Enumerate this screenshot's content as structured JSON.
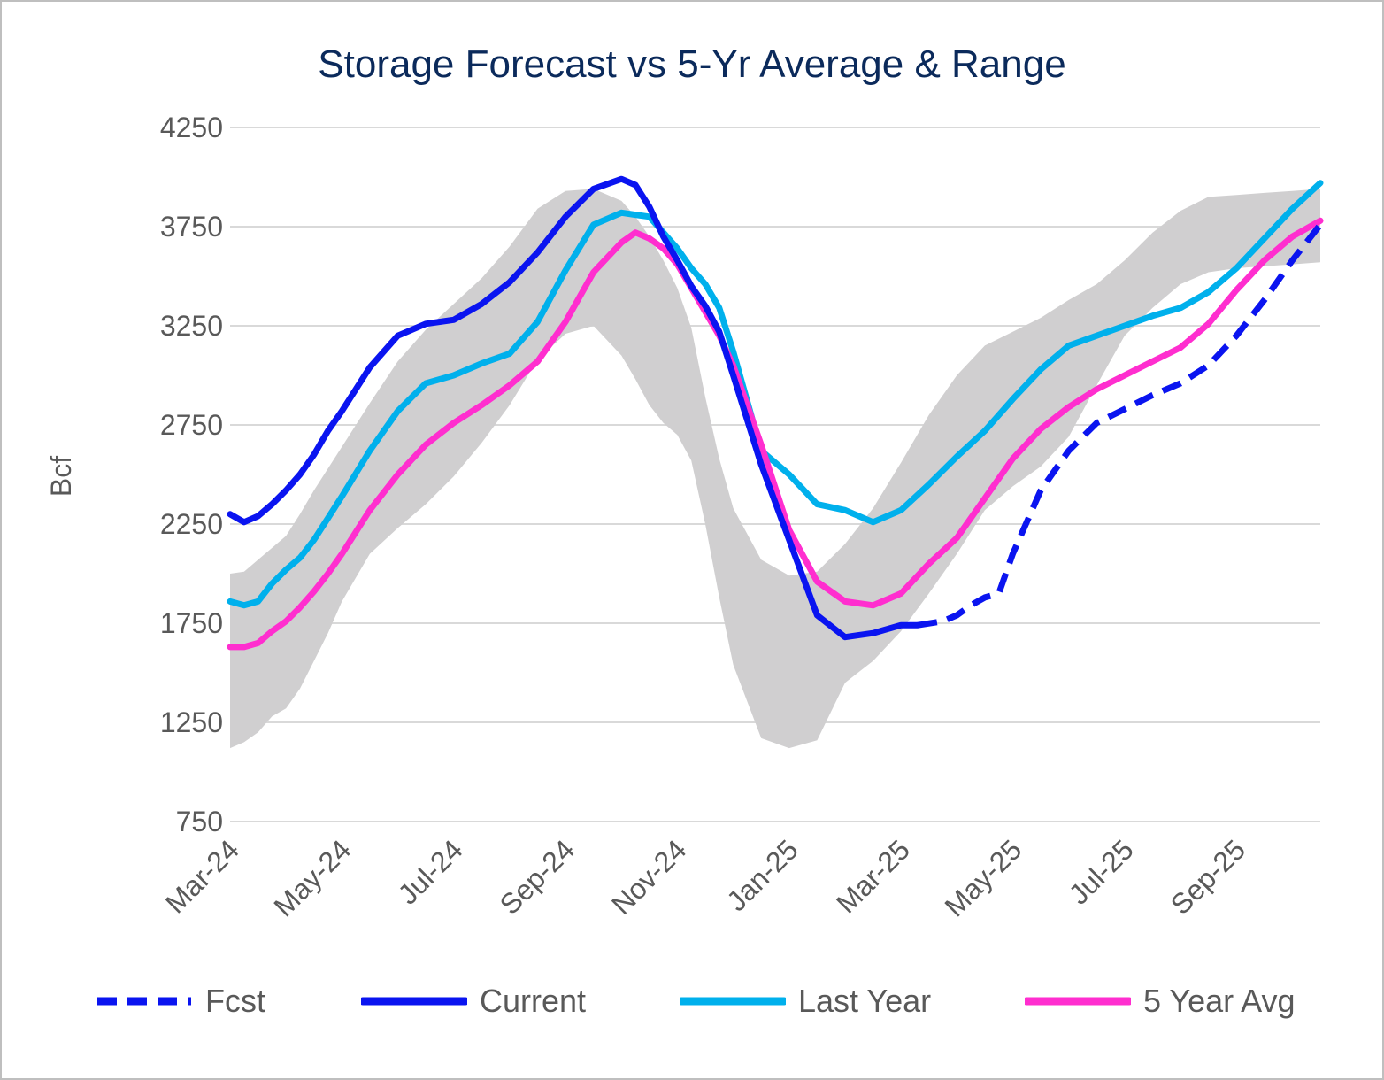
{
  "chart_data": {
    "type": "line",
    "title": "Storage Forecast vs 5-Yr Average & Range",
    "ylabel": "Bcf",
    "xlabel": "",
    "ylim": [
      750,
      4250
    ],
    "yticks": [
      750,
      1250,
      1750,
      2250,
      2750,
      3250,
      3750,
      4250
    ],
    "x_tick_labels": [
      "Mar-24",
      "May-24",
      "Jul-24",
      "Sep-24",
      "Nov-24",
      "Jan-25",
      "Mar-25",
      "May-25",
      "Jul-25",
      "Sep-25"
    ],
    "x_range_months": [
      0,
      19.5
    ],
    "band": {
      "name": "5-Yr Range",
      "color": "#d0cfd0",
      "x": [
        0,
        0.25,
        0.5,
        0.75,
        1,
        1.25,
        1.5,
        1.75,
        2,
        2.5,
        3,
        3.5,
        4,
        4.5,
        5,
        5.5,
        6,
        6.5,
        7,
        7.25,
        7.5,
        7.75,
        8,
        8.25,
        8.5,
        8.75,
        9,
        9.5,
        10,
        10.5,
        11,
        11.5,
        12,
        12.5,
        13,
        13.5,
        14,
        14.5,
        15,
        15.5,
        16,
        16.5,
        17,
        17.5,
        18,
        18.5,
        19,
        19.5
      ],
      "upper": [
        2000,
        2010,
        2070,
        2130,
        2190,
        2300,
        2420,
        2530,
        2640,
        2860,
        3070,
        3230,
        3360,
        3490,
        3650,
        3840,
        3930,
        3940,
        3880,
        3800,
        3700,
        3580,
        3440,
        3240,
        2890,
        2580,
        2330,
        2070,
        1990,
        2010,
        2150,
        2330,
        2560,
        2800,
        3000,
        3150,
        3220,
        3290,
        3380,
        3460,
        3580,
        3720,
        3830,
        3900,
        3910,
        3920,
        3930,
        3940
      ],
      "lower": [
        1120,
        1150,
        1200,
        1280,
        1320,
        1420,
        1560,
        1700,
        1860,
        2100,
        2230,
        2350,
        2490,
        2660,
        2850,
        3080,
        3210,
        3250,
        3100,
        2980,
        2850,
        2760,
        2700,
        2570,
        2250,
        1880,
        1540,
        1170,
        1120,
        1160,
        1450,
        1560,
        1710,
        1900,
        2100,
        2320,
        2440,
        2540,
        2690,
        2950,
        3200,
        3340,
        3460,
        3520,
        3540,
        3550,
        3560,
        3570
      ]
    },
    "series": [
      {
        "name": "Fcst",
        "color": "#0a14f0",
        "dash": true,
        "x": [
          12.3,
          12.75,
          13,
          13.25,
          13.5,
          13.75,
          14,
          14.5,
          15,
          15.5,
          16,
          16.5,
          17,
          17.5,
          18,
          18.5,
          19,
          19.5
        ],
        "values": [
          1740,
          1760,
          1790,
          1840,
          1880,
          1900,
          2100,
          2420,
          2620,
          2760,
          2830,
          2900,
          2960,
          3050,
          3200,
          3380,
          3580,
          3760
        ]
      },
      {
        "name": "Current",
        "color": "#0a14f0",
        "dash": false,
        "x": [
          0,
          0.25,
          0.5,
          0.75,
          1,
          1.25,
          1.5,
          1.75,
          2,
          2.5,
          3,
          3.5,
          4,
          4.5,
          5,
          5.5,
          6,
          6.5,
          7,
          7.25,
          7.5,
          7.75,
          8,
          8.25,
          8.5,
          8.75,
          9,
          9.5,
          10,
          10.5,
          11,
          11.5,
          12,
          12.3
        ],
        "values": [
          2300,
          2260,
          2290,
          2350,
          2420,
          2500,
          2600,
          2720,
          2820,
          3040,
          3200,
          3260,
          3280,
          3360,
          3470,
          3620,
          3800,
          3940,
          3990,
          3960,
          3850,
          3700,
          3580,
          3450,
          3350,
          3220,
          3000,
          2550,
          2170,
          1790,
          1680,
          1700,
          1740,
          1740
        ]
      },
      {
        "name": "Last Year",
        "color": "#00b0ec",
        "dash": false,
        "x": [
          0,
          0.25,
          0.5,
          0.75,
          1,
          1.25,
          1.5,
          1.75,
          2,
          2.5,
          3,
          3.5,
          4,
          4.5,
          5,
          5.5,
          6,
          6.5,
          7,
          7.25,
          7.5,
          7.75,
          8,
          8.25,
          8.5,
          8.75,
          9,
          9.5,
          10,
          10.5,
          11,
          11.5,
          12,
          12.5,
          13,
          13.5,
          14,
          14.5,
          15,
          15.5,
          16,
          16.5,
          17,
          17.5,
          18,
          18.5,
          19,
          19.5
        ],
        "values": [
          1860,
          1840,
          1860,
          1950,
          2020,
          2080,
          2170,
          2280,
          2390,
          2620,
          2820,
          2960,
          3000,
          3060,
          3110,
          3270,
          3530,
          3760,
          3820,
          3810,
          3800,
          3720,
          3640,
          3540,
          3460,
          3340,
          3120,
          2620,
          2500,
          2350,
          2320,
          2260,
          2320,
          2450,
          2590,
          2720,
          2880,
          3030,
          3150,
          3200,
          3250,
          3300,
          3340,
          3420,
          3540,
          3690,
          3840,
          3970
        ]
      },
      {
        "name": "5 Year Avg",
        "color": "#ff2ecf",
        "dash": false,
        "x": [
          0,
          0.25,
          0.5,
          0.75,
          1,
          1.25,
          1.5,
          1.75,
          2,
          2.5,
          3,
          3.5,
          4,
          4.5,
          5,
          5.5,
          6,
          6.5,
          7,
          7.25,
          7.5,
          7.75,
          8,
          8.25,
          8.5,
          8.75,
          9,
          9.5,
          10,
          10.5,
          11,
          11.5,
          12,
          12.5,
          13,
          13.5,
          14,
          14.5,
          15,
          15.5,
          16,
          16.5,
          17,
          17.5,
          18,
          18.5,
          19,
          19.5
        ],
        "values": [
          1630,
          1630,
          1650,
          1710,
          1760,
          1830,
          1910,
          2000,
          2100,
          2320,
          2500,
          2650,
          2760,
          2850,
          2950,
          3070,
          3270,
          3520,
          3670,
          3720,
          3690,
          3640,
          3560,
          3440,
          3320,
          3200,
          3050,
          2650,
          2220,
          1960,
          1860,
          1840,
          1900,
          2050,
          2180,
          2380,
          2580,
          2730,
          2840,
          2930,
          3000,
          3070,
          3140,
          3260,
          3430,
          3580,
          3700,
          3780
        ]
      }
    ],
    "legend": [
      "Fcst",
      "Current",
      "Last Year",
      "5 Year Avg"
    ]
  }
}
